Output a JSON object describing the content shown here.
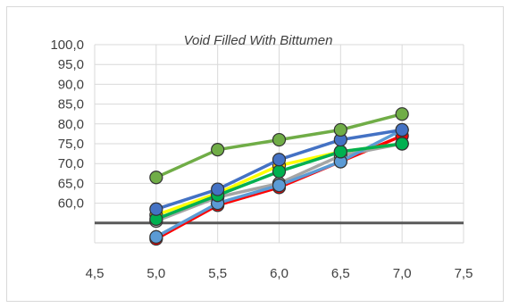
{
  "chart_data": {
    "type": "line",
    "title": "Void Filled With Bittumen",
    "xlabel": "",
    "ylabel": "",
    "xlim": [
      4.5,
      7.5
    ],
    "ylim": [
      50.0,
      100.0
    ],
    "x_ticks": [
      "4,5",
      "5,0",
      "5,5",
      "6,0",
      "6,5",
      "7,0",
      "7,5"
    ],
    "y_ticks": [
      "100,0",
      "95,0",
      "90,0",
      "85,0",
      "80,0",
      "75,0",
      "70,0",
      "65,0",
      "60,0"
    ],
    "grid": true,
    "legend": "none",
    "reference_line": {
      "y": 55.0,
      "color": "#595959"
    },
    "x": [
      5.0,
      5.5,
      6.0,
      6.5,
      7.0
    ],
    "series": [
      {
        "color": "#ff0000",
        "marker": "#ff0000",
        "values": [
          51.0,
          59.5,
          64.0,
          70.5,
          77.0
        ]
      },
      {
        "color": "#a5a5a5",
        "marker": "#a5a5a5",
        "values": [
          55.5,
          61.5,
          65.0,
          72.0,
          75.0
        ]
      },
      {
        "color": "#5b9bd5",
        "marker": "#5b9bd5",
        "values": [
          51.5,
          60.0,
          64.5,
          70.5,
          78.5
        ]
      },
      {
        "color": "#ffff00",
        "marker": "#ffc000",
        "values": [
          57.0,
          62.5,
          69.5,
          73.0,
          75.0
        ]
      },
      {
        "color": "#00b050",
        "marker": "#00b050",
        "values": [
          56.0,
          62.0,
          68.0,
          73.0,
          75.0
        ]
      },
      {
        "color": "#4472c4",
        "marker": "#4472c4",
        "values": [
          58.5,
          63.5,
          71.0,
          76.0,
          78.5
        ]
      },
      {
        "color": "#70ad47",
        "marker": "#70ad47",
        "values": [
          66.5,
          73.5,
          76.0,
          78.5,
          82.5
        ]
      }
    ]
  }
}
